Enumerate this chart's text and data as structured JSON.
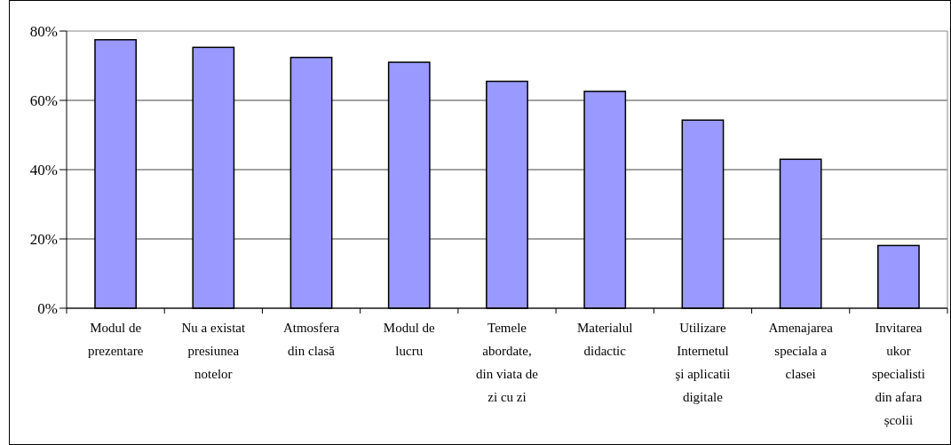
{
  "chart_data": {
    "type": "bar",
    "categories": [
      "Modul de\nprezentare",
      "Nu a existat\npresiunea\nnotelor",
      "Atmosfera\ndin clasă",
      "Modul de\nlucru",
      "Temele\nabordate,\ndin viata de\nzi cu zi",
      "Materialul\ndidactic",
      "Utilizare\nInternetul\nşi aplicatii\ndigitale",
      "Amenajarea\nspeciala a\nclasei",
      "Invitarea\nukor\nspecialisti\ndin afara\nșcolii"
    ],
    "values": [
      77.5,
      75.3,
      72.4,
      71.0,
      65.5,
      62.6,
      54.3,
      43.0,
      18.1
    ],
    "color": "#9999ff",
    "ylim": [
      0,
      80
    ],
    "yticks": [
      {
        "value": 0,
        "label": "0%"
      },
      {
        "value": 20,
        "label": "20%"
      },
      {
        "value": 40,
        "label": "40%"
      },
      {
        "value": 60,
        "label": "60%"
      },
      {
        "value": 80,
        "label": "80%"
      }
    ],
    "grid": "y"
  }
}
